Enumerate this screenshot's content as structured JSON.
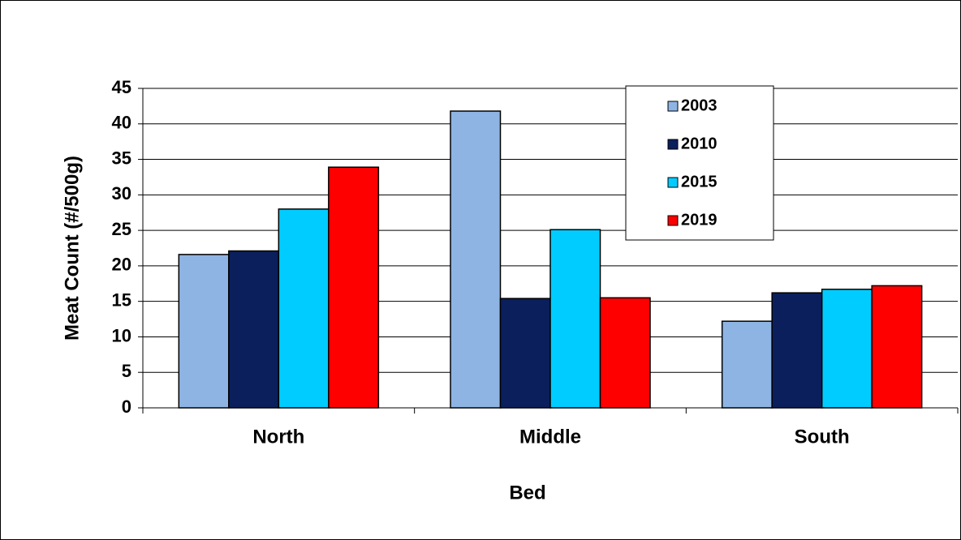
{
  "chart_data": {
    "type": "bar",
    "x_label": "Bed",
    "y_label": "Meat Count (#/500g)",
    "categories": [
      "North",
      "Middle",
      "South"
    ],
    "series": [
      {
        "name": "2003",
        "color": "#8eb4e3",
        "values": [
          21.6,
          41.8,
          12.2
        ]
      },
      {
        "name": "2010",
        "color": "#0a1f5c",
        "values": [
          22.1,
          15.4,
          16.2
        ]
      },
      {
        "name": "2015",
        "color": "#00ccff",
        "values": [
          28.0,
          25.1,
          16.7
        ]
      },
      {
        "name": "2019",
        "color": "#ff0000",
        "values": [
          33.9,
          15.5,
          17.2
        ]
      }
    ],
    "ylim": [
      0,
      45
    ],
    "yticks": [
      0,
      5,
      10,
      15,
      20,
      25,
      30,
      35,
      40,
      45
    ],
    "grid": true,
    "legend": "upper-right"
  }
}
